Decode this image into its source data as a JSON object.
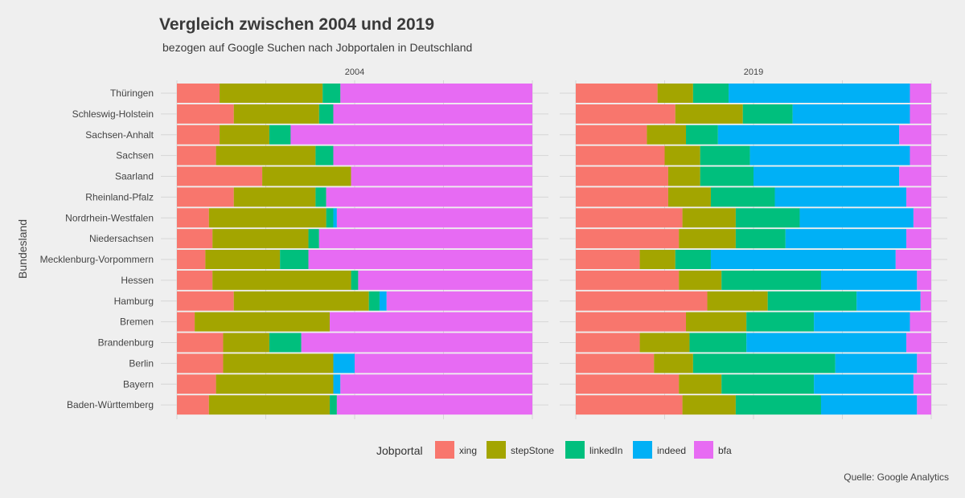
{
  "chart_data": {
    "type": "bar",
    "orientation": "horizontal",
    "stacked": "fill",
    "title": "Vergleich zwischen 2004 und 2019",
    "subtitle": "bezogen auf Google Suchen nach Jobportalen in Deutschland",
    "ylabel": "Bundesland",
    "caption": "Quelle: Google Analytics",
    "legend": {
      "title": "Jobportal",
      "position": "bottom"
    },
    "xlim": [
      0,
      1
    ],
    "grid": true,
    "categories": [
      "Thüringen",
      "Schleswig-Holstein",
      "Sachsen-Anhalt",
      "Sachsen",
      "Saarland",
      "Rheinland-Pfalz",
      "Nordrhein-Westfalen",
      "Niedersachsen",
      "Mecklenburg-Vorpommern",
      "Hessen",
      "Hamburg",
      "Bremen",
      "Brandenburg",
      "Berlin",
      "Bayern",
      "Baden-Württemberg"
    ],
    "series_names": [
      "xing",
      "stepStone",
      "linkedIn",
      "indeed",
      "bfa"
    ],
    "colors": [
      "#F8766D",
      "#A3A500",
      "#00BF7D",
      "#00B0F6",
      "#E76BF3"
    ],
    "panels": [
      {
        "label": "2004",
        "values": [
          [
            0.12,
            0.29,
            0.05,
            0.0,
            0.54
          ],
          [
            0.16,
            0.24,
            0.04,
            0.0,
            0.56
          ],
          [
            0.12,
            0.14,
            0.06,
            0.0,
            0.68
          ],
          [
            0.11,
            0.28,
            0.05,
            0.0,
            0.56
          ],
          [
            0.24,
            0.25,
            0.0,
            0.0,
            0.51
          ],
          [
            0.16,
            0.23,
            0.03,
            0.0,
            0.58
          ],
          [
            0.09,
            0.33,
            0.02,
            0.01,
            0.55
          ],
          [
            0.1,
            0.27,
            0.03,
            0.0,
            0.6
          ],
          [
            0.08,
            0.21,
            0.08,
            0.0,
            0.63
          ],
          [
            0.1,
            0.39,
            0.02,
            0.0,
            0.49
          ],
          [
            0.16,
            0.38,
            0.03,
            0.02,
            0.41
          ],
          [
            0.05,
            0.38,
            0.0,
            0.0,
            0.57
          ],
          [
            0.13,
            0.13,
            0.09,
            0.0,
            0.65
          ],
          [
            0.13,
            0.31,
            0.0,
            0.06,
            0.5
          ],
          [
            0.11,
            0.33,
            0.0,
            0.02,
            0.54
          ],
          [
            0.09,
            0.34,
            0.02,
            0.0,
            0.55
          ]
        ]
      },
      {
        "label": "2019",
        "values": [
          [
            0.23,
            0.1,
            0.1,
            0.51,
            0.06
          ],
          [
            0.28,
            0.19,
            0.14,
            0.33,
            0.06
          ],
          [
            0.2,
            0.11,
            0.09,
            0.51,
            0.09
          ],
          [
            0.25,
            0.1,
            0.14,
            0.45,
            0.06
          ],
          [
            0.26,
            0.09,
            0.15,
            0.41,
            0.09
          ],
          [
            0.26,
            0.12,
            0.18,
            0.37,
            0.07
          ],
          [
            0.3,
            0.15,
            0.18,
            0.32,
            0.05
          ],
          [
            0.29,
            0.16,
            0.14,
            0.34,
            0.07
          ],
          [
            0.18,
            0.1,
            0.1,
            0.52,
            0.1
          ],
          [
            0.29,
            0.12,
            0.28,
            0.27,
            0.04
          ],
          [
            0.37,
            0.17,
            0.25,
            0.18,
            0.03
          ],
          [
            0.31,
            0.17,
            0.19,
            0.27,
            0.06
          ],
          [
            0.18,
            0.14,
            0.16,
            0.45,
            0.07
          ],
          [
            0.22,
            0.11,
            0.4,
            0.23,
            0.04
          ],
          [
            0.29,
            0.12,
            0.26,
            0.28,
            0.05
          ],
          [
            0.3,
            0.15,
            0.24,
            0.27,
            0.04
          ]
        ]
      }
    ]
  }
}
